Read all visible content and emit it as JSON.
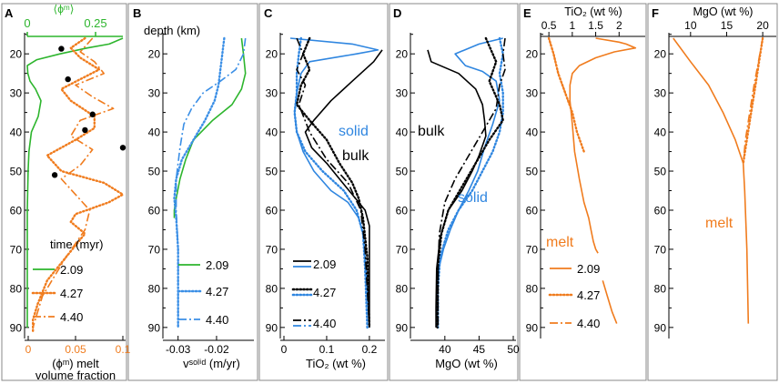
{
  "colors": {
    "green": "#2db52d",
    "blue": "#2f86e0",
    "dotblue": "#3b8fe6",
    "orange": "#f07c1e",
    "black": "#000000"
  },
  "depth_label": "depth (km)",
  "chart_data": [
    {
      "panel": "A",
      "type": "line",
      "xlim": [
        0,
        0.1
      ],
      "ylim": [
        15,
        92
      ],
      "xticks": [
        "0",
        "0.05",
        "0.1"
      ],
      "yticks": [
        "20",
        "30",
        "40",
        "50",
        "60",
        "70",
        "80",
        "90"
      ],
      "xlabel": "(ϕᵐ) melt",
      "xlabel2": "volume fraction",
      "top_axis": {
        "label": "⟨ϕᵐ⟩",
        "ticks": [
          "0",
          "0.25"
        ],
        "xlim": [
          0,
          0.35
        ]
      },
      "legend_title": "time (myr)",
      "series": [
        {
          "name": "2.09",
          "style": "solid",
          "color": "green",
          "axis": "top",
          "x": [
            0.35,
            0.3,
            0.22,
            0.12,
            0.035,
            0.0,
            0.002,
            0.01,
            0.03,
            0.05,
            0.04,
            0.015,
            0.006,
            0.003,
            0.0,
            0.0,
            0.0,
            0.0
          ],
          "y": [
            16,
            17.5,
            18.5,
            20,
            21.5,
            23,
            25,
            27,
            29,
            32,
            36,
            40,
            45,
            50,
            60,
            70,
            80,
            90
          ]
        },
        {
          "name": "4.27",
          "style": "dotted",
          "color": "orange",
          "axis": "bottom",
          "x": [
            0.06,
            0.045,
            0.055,
            0.075,
            0.055,
            0.035,
            0.045,
            0.07,
            0.07,
            0.05,
            0.02,
            0.035,
            0.08,
            0.1,
            0.085,
            0.05,
            0.045,
            0.06,
            0.04,
            0.02,
            0.01,
            0.005,
            0.005
          ],
          "y": [
            16,
            18.5,
            21,
            24,
            26.5,
            29,
            32,
            36,
            39,
            42,
            46,
            50,
            53,
            56,
            58,
            61,
            63,
            66,
            72,
            78,
            84,
            88,
            91
          ]
        },
        {
          "name": "4.40",
          "style": "dashdot",
          "color": "orange",
          "axis": "bottom",
          "x": [
            0.068,
            0.055,
            0.07,
            0.08,
            0.05,
            0.068,
            0.09,
            0.055,
            0.045,
            0.068,
            0.055,
            0.035,
            0.05,
            0.065,
            0.06,
            0.04,
            0.015,
            0.005
          ],
          "y": [
            16,
            19.5,
            22,
            25,
            28,
            31,
            34,
            37,
            41,
            44.5,
            48.5,
            52,
            56,
            60,
            65,
            72,
            82,
            90
          ]
        }
      ],
      "markers": {
        "x": [
          0.035,
          0.042,
          0.068,
          0.06,
          0.1,
          0.028
        ],
        "y": [
          18.7,
          26.5,
          35.5,
          39.5,
          44,
          51
        ]
      }
    },
    {
      "panel": "B",
      "type": "line",
      "xlim": [
        -0.033,
        -0.011
      ],
      "ylim": [
        15,
        92
      ],
      "xticks": [
        "-0.03",
        "-0.02"
      ],
      "yticks": [
        "20",
        "30",
        "40",
        "50",
        "60",
        "70",
        "80",
        "90"
      ],
      "xlabel": "vˢᵒˡⁱᵈ (m/yr)",
      "series": [
        {
          "name": "2.09",
          "style": "solid",
          "color": "green",
          "x": [
            -0.0135,
            -0.013,
            -0.0125,
            -0.0135,
            -0.016,
            -0.021,
            -0.026,
            -0.028,
            -0.0295,
            -0.0305,
            -0.031,
            -0.031
          ],
          "y": [
            16,
            20,
            25,
            29,
            33,
            37,
            42,
            47,
            52,
            57,
            60,
            62
          ]
        },
        {
          "name": "4.27",
          "style": "dotted",
          "color": "dotblue",
          "x": [
            -0.018,
            -0.0185,
            -0.019,
            -0.0195,
            -0.0205,
            -0.023,
            -0.026,
            -0.029,
            -0.0305,
            -0.031,
            -0.0305,
            -0.03,
            -0.03,
            -0.03,
            -0.03
          ],
          "y": [
            16,
            20,
            24,
            28,
            32,
            37,
            42,
            47,
            52,
            57,
            62,
            70,
            80,
            88,
            90
          ]
        },
        {
          "name": "4.40",
          "style": "dashdot",
          "color": "dotblue",
          "x": [
            -0.0125,
            -0.013,
            -0.015,
            -0.019,
            -0.0235,
            -0.0265,
            -0.0285,
            -0.0295,
            -0.0305,
            -0.0305,
            -0.03,
            -0.03,
            -0.03
          ],
          "y": [
            16,
            20,
            24,
            27,
            30,
            34,
            38,
            44,
            52,
            60,
            70,
            80,
            90
          ]
        }
      ]
    },
    {
      "panel": "C",
      "type": "line",
      "xlim": [
        0,
        0.23
      ],
      "ylim": [
        15,
        92
      ],
      "xticks": [
        "0",
        "0.1",
        "0.2"
      ],
      "yticks": [
        "20",
        "30",
        "40",
        "50",
        "60",
        "70",
        "80",
        "90"
      ],
      "xlabel": "TiO₂ (wt %)",
      "annotations": [
        "solid",
        "bulk"
      ],
      "series": [
        {
          "name": "2.09 solid",
          "style": "solid",
          "color": "blue",
          "x": [
            0.015,
            0.16,
            0.22,
            0.17,
            0.06,
            0.04,
            0.03,
            0.025,
            0.03,
            0.045,
            0.07,
            0.11,
            0.15,
            0.175,
            0.185,
            0.19,
            0.195,
            0.2
          ],
          "y": [
            16,
            17.5,
            19,
            20,
            22,
            25,
            30,
            35,
            40,
            45,
            50,
            55,
            58,
            62,
            66,
            72,
            80,
            90
          ]
        },
        {
          "name": "2.09 bulk",
          "style": "solid",
          "color": "black",
          "x": [
            0.23,
            0.21,
            0.16,
            0.11,
            0.07,
            0.05,
            0.065,
            0.1,
            0.13,
            0.16,
            0.19,
            0.2,
            0.2,
            0.2,
            0.2,
            0.2
          ],
          "y": [
            19,
            22,
            27,
            32,
            37,
            40,
            44,
            48,
            52,
            56,
            60,
            64,
            70,
            75,
            80,
            90
          ]
        },
        {
          "name": "4.27 solid",
          "style": "dotted",
          "color": "blue",
          "x": [
            0.04,
            0.035,
            0.03,
            0.03,
            0.025,
            0.03,
            0.05,
            0.09,
            0.14,
            0.17,
            0.185,
            0.19,
            0.195
          ],
          "y": [
            16,
            20,
            25,
            30,
            35,
            40,
            45,
            50,
            55,
            60,
            66,
            75,
            90
          ]
        },
        {
          "name": "4.27 bulk",
          "style": "dotted",
          "color": "black",
          "x": [
            0.06,
            0.045,
            0.06,
            0.04,
            0.03,
            0.06,
            0.1,
            0.13,
            0.16,
            0.175,
            0.185,
            0.195,
            0.2
          ],
          "y": [
            16,
            20,
            24,
            28,
            33,
            37,
            42,
            48,
            53,
            57,
            62,
            72,
            90
          ]
        },
        {
          "name": "4.40 bulk",
          "style": "dashdot",
          "color": "black",
          "x": [
            0.03,
            0.045,
            0.03,
            0.05,
            0.035,
            0.06,
            0.1,
            0.15,
            0.18,
            0.19,
            0.2
          ],
          "y": [
            16,
            20,
            24,
            28,
            33,
            40,
            47,
            53,
            60,
            70,
            90
          ]
        }
      ],
      "legend": [
        "2.09",
        "4.27",
        "4.40"
      ]
    },
    {
      "panel": "D",
      "type": "line",
      "xlim": [
        35.5,
        50
      ],
      "ylim": [
        15,
        92
      ],
      "xticks": [
        "40",
        "45",
        "50"
      ],
      "yticks": [
        "20",
        "30",
        "40",
        "50",
        "60",
        "70",
        "80",
        "90"
      ],
      "xlabel": "MgO (wt %)",
      "annotations": [
        "bulk",
        "solid"
      ],
      "series": [
        {
          "name": "2.09 solid",
          "style": "solid",
          "color": "blue",
          "x": [
            48.5,
            45,
            41.5,
            43,
            45.5,
            47.5,
            48,
            47,
            45.8,
            44.8,
            43.5,
            42,
            40.8,
            39.8,
            39.1,
            38.8,
            38.8,
            38.8
          ],
          "y": [
            16,
            17.5,
            20,
            23,
            24.5,
            27,
            32,
            38,
            44,
            50,
            55,
            60,
            65,
            70,
            75,
            80,
            85,
            90
          ]
        },
        {
          "name": "2.09 bulk",
          "style": "solid",
          "color": "black",
          "x": [
            37.5,
            38,
            42,
            44.5,
            45.5,
            45.8,
            46,
            45,
            44,
            42.5,
            40.5,
            39.3,
            38.8,
            38.7,
            38.7
          ],
          "y": [
            19,
            22,
            25,
            29,
            33,
            37,
            41,
            46,
            50,
            55,
            60,
            67,
            75,
            85,
            90
          ]
        },
        {
          "name": "4.27 solid",
          "style": "dotted",
          "color": "blue",
          "x": [
            48,
            48.5,
            48,
            48.5,
            48.5,
            48,
            47,
            45.5,
            44,
            42,
            40.5,
            39.3,
            39,
            39
          ],
          "y": [
            16,
            20,
            25,
            30,
            35,
            40,
            45,
            50,
            55,
            60,
            65,
            72,
            80,
            90
          ]
        },
        {
          "name": "4.27 bulk",
          "style": "dotted",
          "color": "black",
          "x": [
            46,
            47.5,
            46.5,
            48,
            48.5,
            46.5,
            44.5,
            42.5,
            40.5,
            39.5,
            39,
            38.9
          ],
          "y": [
            16,
            22,
            27,
            33,
            37,
            42,
            48,
            54,
            60,
            66,
            74,
            90
          ]
        },
        {
          "name": "4.40 bulk",
          "style": "dashdot",
          "color": "black",
          "x": [
            48.8,
            48.5,
            48.8,
            48,
            47.5,
            45.5,
            43.5,
            41.5,
            40,
            39.2,
            39,
            39
          ],
          "y": [
            16,
            20,
            24,
            28,
            34,
            40,
            46,
            52,
            58,
            66,
            75,
            90
          ]
        }
      ]
    },
    {
      "panel": "E",
      "type": "line",
      "xlim": [
        0.4,
        2.5
      ],
      "ylim": [
        15,
        92
      ],
      "xticks": [
        "0.5",
        "1",
        "1.5",
        "2"
      ],
      "yticks": [
        "20",
        "30",
        "40",
        "50",
        "60",
        "70",
        "80",
        "90"
      ],
      "xlabel": "TiO₂ (wt %)",
      "annotations": [
        "melt"
      ],
      "series": [
        {
          "name": "2.09",
          "style": "solid",
          "color": "orange",
          "x": [
            1.5,
            2.0,
            2.15,
            2.35,
            1.9,
            1.5,
            1.15,
            1.0,
            0.95,
            0.95,
            1.0,
            1.05,
            1.15,
            1.25,
            1.35,
            1.4,
            1.45,
            1.5,
            1.55
          ],
          "y": [
            16,
            17,
            17.5,
            18.5,
            19.5,
            21,
            23,
            25,
            28,
            32,
            38,
            45,
            52,
            58,
            62,
            65,
            68,
            70,
            71
          ]
        },
        {
          "name": "4.27",
          "style": "dotted",
          "color": "orange",
          "x": [
            0.5,
            0.6,
            0.7,
            0.85,
            1.0,
            1.1,
            1.25
          ],
          "y": [
            16,
            20,
            25,
            30,
            35,
            40,
            45
          ]
        },
        {
          "name": "4.40",
          "style": "dashdot",
          "color": "orange",
          "x": [
            0.5,
            0.6,
            0.7,
            0.85,
            1.0
          ],
          "y": [
            16,
            20,
            25,
            30,
            35
          ]
        }
      ],
      "extra_line": {
        "x": [
          1.65,
          1.75,
          1.85,
          1.95
        ],
        "y": [
          78,
          82,
          86,
          89
        ]
      },
      "legend": [
        "2.09",
        "4.27",
        "4.40"
      ]
    },
    {
      "panel": "F",
      "type": "line",
      "xlim": [
        7.5,
        21.5
      ],
      "ylim": [
        15,
        92
      ],
      "xticks": [
        "10",
        "15",
        "20"
      ],
      "yticks": [
        "20",
        "30",
        "40",
        "50",
        "60",
        "70",
        "80",
        "90"
      ],
      "xlabel": "MgO (wt %)",
      "annotations": [
        "melt"
      ],
      "series": [
        {
          "name": "2.09",
          "style": "solid",
          "color": "orange",
          "x": [
            7.6,
            10,
            12.5,
            14.5,
            16.2,
            17.3,
            17.5,
            17.8,
            18.0
          ],
          "y": [
            16,
            22,
            28,
            35,
            42,
            48,
            55,
            70,
            89
          ]
        },
        {
          "name": "4.27",
          "style": "dotted",
          "color": "orange",
          "x": [
            20,
            19.5,
            19,
            18.4,
            17.8,
            17.3
          ],
          "y": [
            16,
            22,
            28,
            35,
            42,
            48
          ]
        },
        {
          "name": "4.40",
          "style": "dashdot",
          "color": "orange",
          "x": [
            20,
            19.4,
            18.8,
            18.2,
            17.6,
            17.3
          ],
          "y": [
            16,
            22,
            28,
            35,
            42,
            48
          ]
        }
      ]
    }
  ]
}
